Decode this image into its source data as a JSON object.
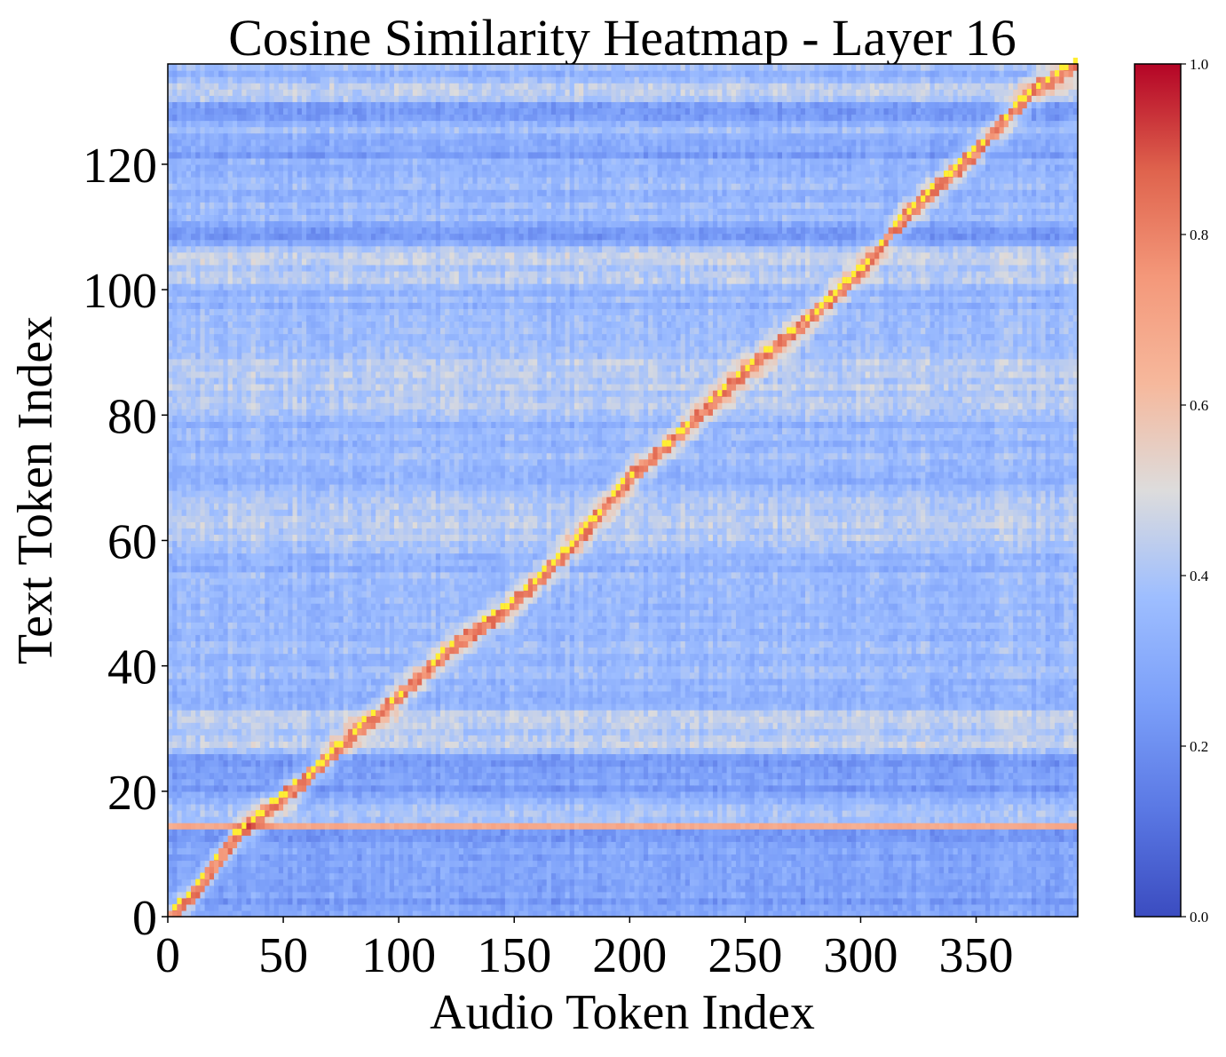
{
  "chart_data": {
    "type": "heatmap",
    "title": "Cosine Similarity Heatmap - Layer 16",
    "xlabel": "Audio Token Index",
    "ylabel": "Text Token Index",
    "x_range": [
      0,
      394
    ],
    "y_range": [
      0,
      136
    ],
    "x_ticks": [
      0,
      50,
      100,
      150,
      200,
      250,
      300,
      350
    ],
    "y_ticks": [
      0,
      20,
      40,
      60,
      80,
      100,
      120
    ],
    "colormap": "coolwarm",
    "colorbar": {
      "range": [
        0.0,
        1.0
      ],
      "ticks": [
        "0.0",
        "0.2",
        "0.4",
        "0.6",
        "0.8",
        "1.0"
      ]
    },
    "background_level": 0.35,
    "highlight_row": {
      "y": 14,
      "value": 0.68
    },
    "dark_row_bands": [
      [
        0,
        13
      ],
      [
        19,
        25
      ],
      [
        107,
        110
      ],
      [
        121,
        123
      ],
      [
        127,
        129
      ]
    ],
    "light_row_bands": [
      [
        15,
        17
      ],
      [
        26,
        32
      ],
      [
        60,
        66
      ],
      [
        80,
        90
      ],
      [
        101,
        106
      ],
      [
        130,
        132
      ]
    ],
    "alignment_path": [
      [
        0,
        0
      ],
      [
        10,
        3
      ],
      [
        20,
        8
      ],
      [
        30,
        13
      ],
      [
        40,
        16
      ],
      [
        60,
        22
      ],
      [
        80,
        29
      ],
      [
        100,
        35
      ],
      [
        120,
        42
      ],
      [
        150,
        50
      ],
      [
        175,
        59
      ],
      [
        200,
        70
      ],
      [
        225,
        78
      ],
      [
        250,
        87
      ],
      [
        280,
        96
      ],
      [
        300,
        103
      ],
      [
        320,
        112
      ],
      [
        350,
        122
      ],
      [
        375,
        132
      ],
      [
        394,
        136
      ]
    ],
    "alignment_peak_color": "#ffee33",
    "grid": false,
    "legend": "none"
  }
}
